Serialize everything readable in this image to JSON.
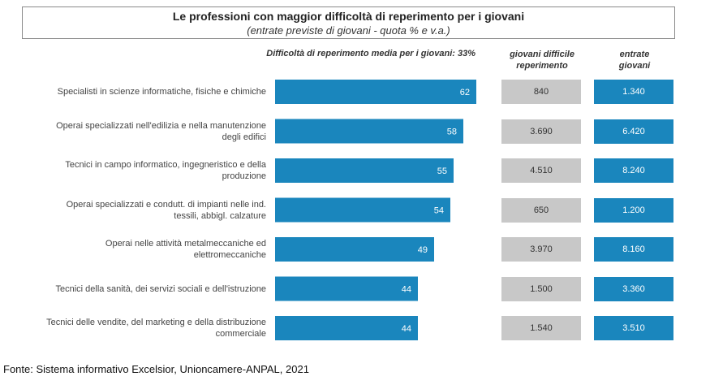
{
  "title": "Le professioni con maggior difficoltà di reperimento per i giovani",
  "subtitle": "(entrate previste di giovani - quota % e v.a.)",
  "avg_note": "Difficoltà di reperimento media per i giovani: 33%",
  "col_headers": {
    "difficile_line1": "giovani difficile",
    "difficile_line2": "reperimento",
    "entrate_line1": "entrate",
    "entrate_line2": "giovani"
  },
  "footer": "Fonte: Sistema informativo Excelsior, Unioncamere-ANPAL, 2021",
  "colors": {
    "bar": "#1a86bd",
    "grey_cell": "#c8c8c8",
    "blue_cell": "#1a86bd"
  },
  "chart_data": {
    "type": "bar",
    "orientation": "horizontal",
    "categories": [
      [
        "Specialisti in scienze informatiche, fisiche e chimiche"
      ],
      [
        "Operai specializzati nell'edilizia e nella manutenzione",
        "degli edifici"
      ],
      [
        "Tecnici in campo informatico, ingegneristico e della",
        "produzione"
      ],
      [
        "Operai specializzati e condutt. di impianti nelle ind.",
        "tessili, abbigl. calzature"
      ],
      [
        "Operai nelle attività metalmeccaniche ed",
        "elettromeccaniche"
      ],
      [
        "Tecnici della sanità, dei servizi sociali e dell'istruzione"
      ],
      [
        "Tecnici delle vendite, del marketing e della distribuzione",
        "commerciale"
      ]
    ],
    "values": [
      62,
      58,
      55,
      54,
      49,
      44,
      44
    ],
    "giovani_difficile_reperimento": [
      "840",
      "3.690",
      "4.510",
      "650",
      "3.970",
      "1.500",
      "1.540"
    ],
    "entrate_giovani": [
      "1.340",
      "6.420",
      "8.240",
      "1.200",
      "8.160",
      "3.360",
      "3.510"
    ],
    "xlim": [
      0,
      62
    ]
  }
}
